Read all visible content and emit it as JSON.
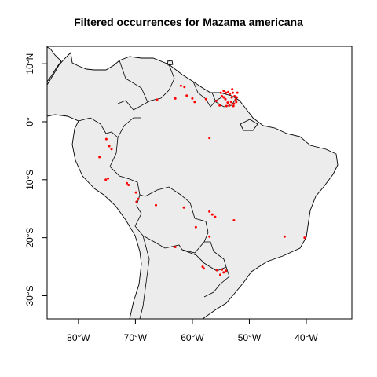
{
  "title": "Filtered occurrences for Mazama americana",
  "map": {
    "projection": "longlat",
    "xlim": [
      -85.5,
      -32
    ],
    "ylim": [
      -34,
      13
    ],
    "x_ticks": [
      {
        "value": -80,
        "label": "80°W"
      },
      {
        "value": -70,
        "label": "70°W"
      },
      {
        "value": -60,
        "label": "60°W"
      },
      {
        "value": -50,
        "label": "50°W"
      },
      {
        "value": -40,
        "label": "40°W"
      }
    ],
    "y_ticks": [
      {
        "value": 10,
        "label": "10°N"
      },
      {
        "value": 0,
        "label": "0°"
      },
      {
        "value": -10,
        "label": "10°S"
      },
      {
        "value": -20,
        "label": "20°S"
      },
      {
        "value": -30,
        "label": "30°S"
      }
    ],
    "land_color": "#ececec",
    "border_color": "#000000",
    "point_color": "#ff0000"
  },
  "occurrences": [
    [
      -66.2,
      3.8
    ],
    [
      -63.0,
      4.0
    ],
    [
      -62.0,
      6.2
    ],
    [
      -61.4,
      6.0
    ],
    [
      -61.0,
      4.5
    ],
    [
      -60.0,
      4.0
    ],
    [
      -59.6,
      3.4
    ],
    [
      -57.6,
      3.9
    ],
    [
      -55.8,
      3.6
    ],
    [
      -55.2,
      2.8
    ],
    [
      -54.8,
      4.4
    ],
    [
      -54.5,
      5.3
    ],
    [
      -54.1,
      5.0
    ],
    [
      -54.2,
      3.9
    ],
    [
      -53.7,
      5.1
    ],
    [
      -53.4,
      4.8
    ],
    [
      -53.1,
      4.2
    ],
    [
      -52.9,
      5.0
    ],
    [
      -52.6,
      4.4
    ],
    [
      -52.4,
      3.8
    ],
    [
      -52.1,
      5.0
    ],
    [
      -53.8,
      3.3
    ],
    [
      -53.2,
      3.4
    ],
    [
      -52.7,
      3.1
    ],
    [
      -54.5,
      4.2
    ],
    [
      -52.2,
      4.2
    ],
    [
      -55.0,
      5.0
    ],
    [
      -53.0,
      5.6
    ],
    [
      -52.3,
      3.4
    ],
    [
      -53.5,
      2.8
    ],
    [
      -54.0,
      2.7
    ],
    [
      -52.8,
      2.7
    ],
    [
      -57.0,
      -2.8
    ],
    [
      -75.1,
      -3.0
    ],
    [
      -74.6,
      -4.2
    ],
    [
      -74.2,
      -4.7
    ],
    [
      -76.3,
      -6.1
    ],
    [
      -75.2,
      -10.0
    ],
    [
      -74.8,
      -9.8
    ],
    [
      -71.5,
      -10.6
    ],
    [
      -71.2,
      -10.9
    ],
    [
      -69.9,
      -12.2
    ],
    [
      -69.5,
      -13.3
    ],
    [
      -69.8,
      -13.8
    ],
    [
      -66.4,
      -14.4
    ],
    [
      -61.5,
      -14.8
    ],
    [
      -57.0,
      -15.5
    ],
    [
      -56.5,
      -16.0
    ],
    [
      -56.0,
      -16.4
    ],
    [
      -52.7,
      -17.0
    ],
    [
      -59.4,
      -18.2
    ],
    [
      -57.0,
      -19.8
    ],
    [
      -43.8,
      -19.8
    ],
    [
      -40.3,
      -20.0
    ],
    [
      -63.0,
      -21.6
    ],
    [
      -58.2,
      -25.0
    ],
    [
      -58.0,
      -25.3
    ],
    [
      -55.7,
      -25.6
    ],
    [
      -54.8,
      -25.5
    ],
    [
      -54.5,
      -26.0
    ],
    [
      -54.1,
      -25.7
    ],
    [
      -55.1,
      -26.4
    ]
  ]
}
